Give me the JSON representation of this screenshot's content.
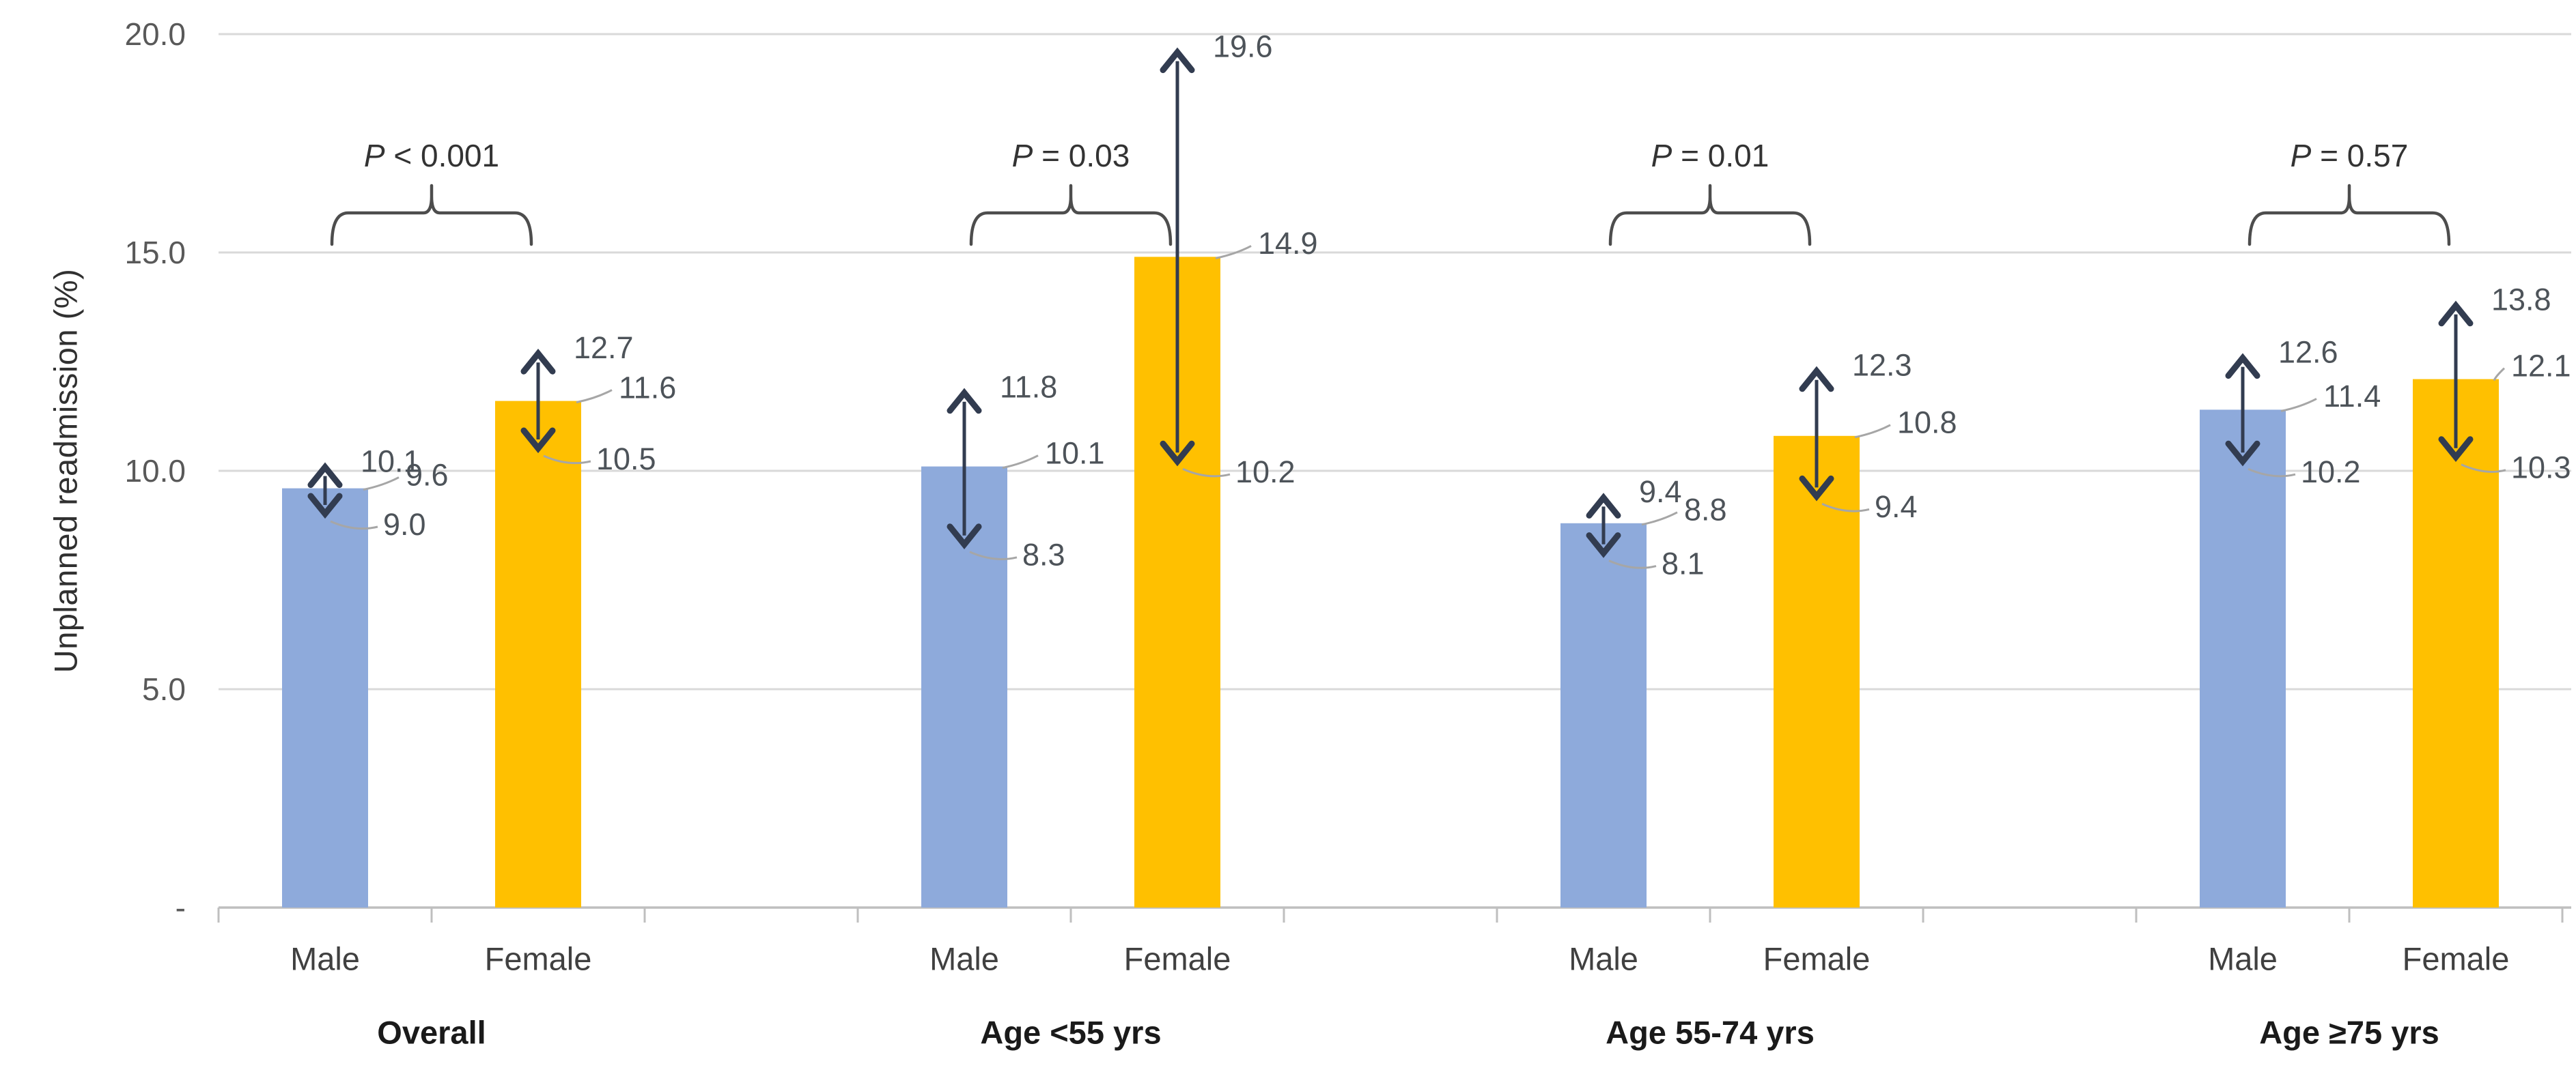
{
  "chart_data": {
    "type": "bar",
    "title": "",
    "xlabel": "",
    "ylabel": "Unplanned readmission (%)",
    "ylim": [
      0,
      20
    ],
    "grid": true,
    "legend_position": "none",
    "yticks": [
      {
        "value": 20,
        "label": "20.0"
      },
      {
        "value": 15,
        "label": "15.0"
      },
      {
        "value": 10,
        "label": "10.0"
      },
      {
        "value": 5,
        "label": "5.0"
      },
      {
        "value": 0,
        "label": "-"
      }
    ],
    "series_colors": {
      "Male": "#8EAADB",
      "Female": "#FFC000"
    },
    "groups": [
      {
        "label": "Overall",
        "p_value": "P < 0.001",
        "bars": [
          {
            "sex": "Male",
            "value": 9.6,
            "ci_low": 9.0,
            "ci_high": 10.1,
            "value_label": "9.6",
            "ci_low_label": "9.0",
            "ci_high_label": "10.1"
          },
          {
            "sex": "Female",
            "value": 11.6,
            "ci_low": 10.5,
            "ci_high": 12.7,
            "value_label": "11.6",
            "ci_low_label": "10.5",
            "ci_high_label": "12.7"
          }
        ]
      },
      {
        "label": "Age <55 yrs",
        "p_value": "P = 0.03",
        "bars": [
          {
            "sex": "Male",
            "value": 10.1,
            "ci_low": 8.3,
            "ci_high": 11.8,
            "value_label": "10.1",
            "ci_low_label": "8.3",
            "ci_high_label": "11.8"
          },
          {
            "sex": "Female",
            "value": 14.9,
            "ci_low": 10.2,
            "ci_high": 19.6,
            "value_label": "14.9",
            "ci_low_label": "10.2",
            "ci_high_label": "19.6"
          }
        ]
      },
      {
        "label": "Age 55-74 yrs",
        "p_value": "P = 0.01",
        "bars": [
          {
            "sex": "Male",
            "value": 8.8,
            "ci_low": 8.1,
            "ci_high": 9.4,
            "value_label": "8.8",
            "ci_low_label": "8.1",
            "ci_high_label": "9.4"
          },
          {
            "sex": "Female",
            "value": 10.8,
            "ci_low": 9.4,
            "ci_high": 12.3,
            "value_label": "10.8",
            "ci_low_label": "9.4",
            "ci_high_label": "12.3"
          }
        ]
      },
      {
        "label": "Age ≥75 yrs",
        "p_value": "P = 0.57",
        "bars": [
          {
            "sex": "Male",
            "value": 11.4,
            "ci_low": 10.2,
            "ci_high": 12.6,
            "value_label": "11.4",
            "ci_low_label": "10.2",
            "ci_high_label": "12.6"
          },
          {
            "sex": "Female",
            "value": 12.1,
            "ci_low": 10.3,
            "ci_high": 13.8,
            "value_label": "12.1",
            "ci_low_label": "10.3",
            "ci_high_label": "13.8"
          }
        ]
      }
    ]
  },
  "style": {
    "error_bar_color": "#323C50",
    "leader_line_color": "#A6A6A6",
    "gridline_color": "#D9D9D9",
    "axis_line_color": "#BFBFBF",
    "data_label_color": "#4D5359",
    "tick_label_color": "#595959",
    "category_label_color": "#404040",
    "group_label_color": "#1A1A1A",
    "p_label_color": "#333333",
    "brace_color": "#4D4D4D"
  }
}
